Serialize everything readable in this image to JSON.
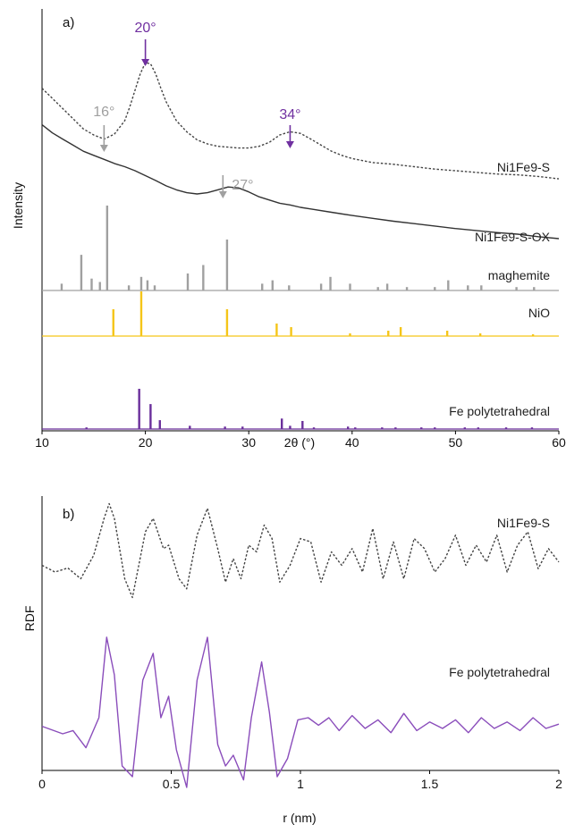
{
  "chart_data": [
    {
      "panel": "a)",
      "type": "line",
      "xlabel": "2θ (°)",
      "ylabel": "Intensity",
      "xlim": [
        10,
        60
      ],
      "xticks": [
        10,
        20,
        30,
        40,
        50,
        60
      ],
      "grid": false,
      "series": [
        {
          "name": "Ni1Fe9-S",
          "style": "dotted",
          "color": "#444444",
          "x": [
            10,
            11,
            12,
            13,
            14,
            15,
            16,
            17,
            18,
            18.5,
            19,
            19.5,
            20,
            20.5,
            21,
            21.5,
            22,
            23,
            24,
            25,
            26,
            27,
            28,
            29,
            30,
            31,
            32,
            33,
            34,
            35,
            36,
            37,
            38,
            39,
            40,
            42,
            44,
            46,
            48,
            50,
            52,
            54,
            56,
            58,
            60
          ],
          "y": [
            6.85,
            6.6,
            6.35,
            6.1,
            5.85,
            5.7,
            5.6,
            5.72,
            6.05,
            6.4,
            6.8,
            7.2,
            7.48,
            7.45,
            7.2,
            6.85,
            6.52,
            6.05,
            5.78,
            5.58,
            5.48,
            5.42,
            5.4,
            5.38,
            5.38,
            5.42,
            5.52,
            5.7,
            5.78,
            5.74,
            5.6,
            5.45,
            5.3,
            5.2,
            5.12,
            5.02,
            4.98,
            4.92,
            4.86,
            4.82,
            4.78,
            4.74,
            4.72,
            4.68,
            4.62
          ]
        },
        {
          "name": "Ni1Fe9-S-OX",
          "style": "solid",
          "color": "#333333",
          "x": [
            10,
            11,
            12,
            13,
            14,
            15,
            16,
            17,
            18,
            19,
            20,
            21,
            22,
            23,
            24,
            25,
            26,
            27,
            28,
            29,
            30,
            31,
            32,
            33,
            34,
            35,
            36,
            38,
            40,
            42,
            44,
            46,
            48,
            50,
            52,
            54,
            56,
            58,
            60
          ],
          "y": [
            5.95,
            5.75,
            5.6,
            5.45,
            5.3,
            5.2,
            5.1,
            5.0,
            4.92,
            4.82,
            4.7,
            4.58,
            4.45,
            4.35,
            4.28,
            4.25,
            4.28,
            4.35,
            4.42,
            4.4,
            4.3,
            4.18,
            4.1,
            4.02,
            3.98,
            3.92,
            3.88,
            3.8,
            3.72,
            3.65,
            3.58,
            3.52,
            3.46,
            3.4,
            3.35,
            3.3,
            3.26,
            3.2,
            3.15
          ]
        },
        {
          "name": "maghemite",
          "type": "sticks",
          "color": "#a0a0a0",
          "x": [
            11.9,
            13.8,
            14.8,
            15.6,
            16.3,
            18.4,
            19.6,
            20.2,
            20.9,
            24.1,
            25.6,
            27.9,
            31.3,
            32.3,
            33.9,
            37.0,
            37.9,
            39.8,
            42.5,
            43.4,
            45.3,
            48.0,
            49.3,
            51.2,
            52.5,
            55.9,
            57.6
          ],
          "y": [
            0.08,
            0.42,
            0.14,
            0.1,
            1.0,
            0.06,
            0.16,
            0.12,
            0.06,
            0.2,
            0.3,
            0.6,
            0.08,
            0.12,
            0.06,
            0.08,
            0.16,
            0.08,
            0.04,
            0.08,
            0.04,
            0.04,
            0.12,
            0.06,
            0.06,
            0.04,
            0.04
          ]
        },
        {
          "name": "NiO",
          "type": "sticks",
          "color": "#f5c518",
          "x": [
            16.9,
            19.6,
            27.9,
            32.7,
            34.1,
            39.8,
            43.5,
            44.7,
            49.2,
            52.4,
            57.5
          ],
          "y": [
            0.6,
            1.0,
            0.6,
            0.28,
            0.2,
            0.06,
            0.12,
            0.2,
            0.12,
            0.06,
            0.04
          ]
        },
        {
          "name": "Fe polytetrahedral",
          "type": "sticks",
          "color": "#6a2e9b",
          "x": [
            14.3,
            19.4,
            20.5,
            21.4,
            24.3,
            27.7,
            29.4,
            33.2,
            34.0,
            35.2,
            36.3,
            39.6,
            40.3,
            42.9,
            44.2,
            46.7,
            48.0,
            50.9,
            52.2,
            54.9,
            57.4
          ],
          "y": [
            0.04,
            1.0,
            0.62,
            0.22,
            0.08,
            0.06,
            0.06,
            0.26,
            0.08,
            0.2,
            0.04,
            0.06,
            0.04,
            0.04,
            0.04,
            0.04,
            0.04,
            0.04,
            0.04,
            0.04,
            0.04
          ]
        }
      ],
      "annotations": [
        {
          "text": "20°",
          "x": 20,
          "color": "#7030a0"
        },
        {
          "text": "34°",
          "x": 34,
          "color": "#7030a0"
        },
        {
          "text": "16°",
          "x": 16,
          "color": "#a0a0a0"
        },
        {
          "text": "27°",
          "x": 27.5,
          "color": "#a0a0a0"
        }
      ]
    },
    {
      "panel": "b)",
      "type": "line",
      "xlabel": "r (nm)",
      "ylabel": "RDF",
      "xlim": [
        0,
        2
      ],
      "xticks": [
        0,
        0.5,
        1,
        1.5,
        2
      ],
      "grid": false,
      "series": [
        {
          "name": "Ni1Fe9-S",
          "style": "dotted",
          "color": "#444444",
          "x": [
            0,
            0.05,
            0.1,
            0.15,
            0.2,
            0.24,
            0.26,
            0.28,
            0.32,
            0.35,
            0.4,
            0.43,
            0.47,
            0.49,
            0.53,
            0.56,
            0.6,
            0.64,
            0.68,
            0.71,
            0.74,
            0.77,
            0.8,
            0.83,
            0.86,
            0.89,
            0.92,
            0.96,
            1.0,
            1.04,
            1.08,
            1.12,
            1.16,
            1.2,
            1.24,
            1.28,
            1.32,
            1.36,
            1.4,
            1.44,
            1.48,
            1.52,
            1.56,
            1.6,
            1.64,
            1.68,
            1.72,
            1.76,
            1.8,
            1.84,
            1.88,
            1.92,
            1.96,
            2.0
          ],
          "y": [
            0.3,
            0.2,
            0.26,
            0.1,
            0.45,
            1.0,
            1.22,
            1.0,
            0.1,
            -0.18,
            0.8,
            1.0,
            0.55,
            0.6,
            0.1,
            -0.05,
            0.75,
            1.15,
            0.55,
            0.05,
            0.4,
            0.1,
            0.6,
            0.5,
            0.9,
            0.7,
            0.05,
            0.3,
            0.7,
            0.65,
            0.05,
            0.5,
            0.3,
            0.55,
            0.2,
            0.85,
            0.1,
            0.65,
            0.1,
            0.7,
            0.55,
            0.2,
            0.4,
            0.75,
            0.3,
            0.6,
            0.35,
            0.75,
            0.2,
            0.6,
            0.8,
            0.25,
            0.55,
            0.35
          ]
        },
        {
          "name": "Fe polytetrahedral",
          "style": "solid",
          "color": "#8a4dbb",
          "x": [
            0,
            0.08,
            0.12,
            0.17,
            0.22,
            0.25,
            0.28,
            0.31,
            0.35,
            0.39,
            0.43,
            0.46,
            0.49,
            0.52,
            0.56,
            0.6,
            0.64,
            0.68,
            0.71,
            0.74,
            0.78,
            0.81,
            0.85,
            0.88,
            0.91,
            0.95,
            0.99,
            1.03,
            1.07,
            1.11,
            1.15,
            1.2,
            1.25,
            1.3,
            1.35,
            1.4,
            1.45,
            1.5,
            1.55,
            1.6,
            1.65,
            1.7,
            1.75,
            1.8,
            1.85,
            1.9,
            1.95,
            2.0
          ],
          "y": [
            0.02,
            -0.05,
            -0.02,
            -0.18,
            0.1,
            0.85,
            0.5,
            -0.35,
            -0.45,
            0.45,
            0.7,
            0.1,
            0.3,
            -0.2,
            -0.55,
            0.45,
            0.85,
            -0.15,
            -0.35,
            -0.25,
            -0.48,
            0.1,
            0.62,
            0.15,
            -0.45,
            -0.28,
            0.08,
            0.1,
            0.03,
            0.1,
            -0.02,
            0.12,
            0.0,
            0.08,
            -0.04,
            0.14,
            -0.02,
            0.06,
            0.0,
            0.08,
            -0.04,
            0.1,
            0.0,
            0.06,
            -0.02,
            0.1,
            0.0,
            0.04
          ]
        }
      ]
    }
  ],
  "panel_a": {
    "label": "a)",
    "ylabel": "Intensity",
    "xlabel": "2θ (°)",
    "series_labels": [
      "Ni1Fe9-S",
      "Ni1Fe9-S-OX",
      "maghemite",
      "NiO",
      "Fe polytetrahedral"
    ],
    "annotations": [
      "20°",
      "34°",
      "16°",
      "27°"
    ]
  },
  "panel_b": {
    "label": "b)",
    "ylabel": "RDF",
    "xlabel": "r (nm)",
    "series_labels": [
      "Ni1Fe9-S",
      "Fe polytetrahedral"
    ]
  }
}
